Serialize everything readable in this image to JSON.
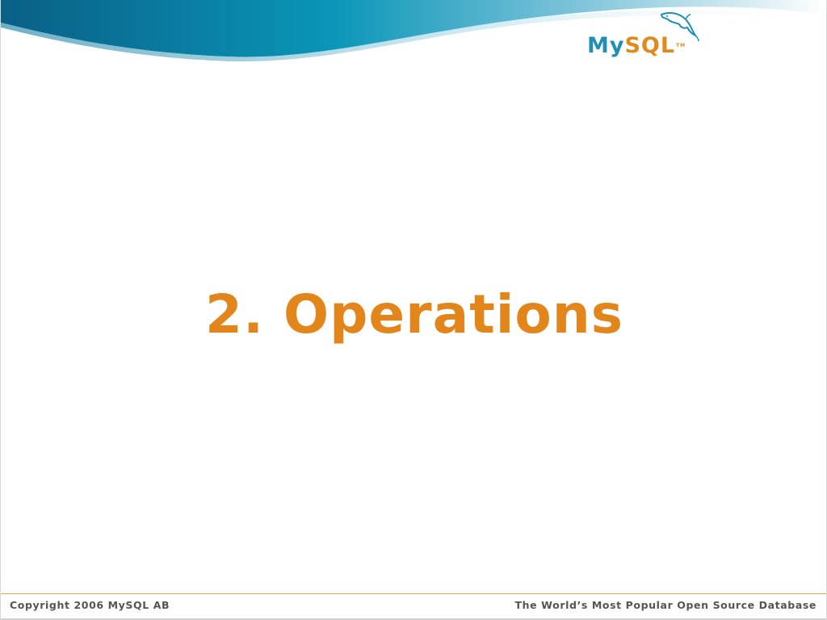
{
  "slide": {
    "title": "2. Operations"
  },
  "logo": {
    "my": "My",
    "sql": "SQL",
    "tm": "TM",
    "icon": "dolphin-icon"
  },
  "footer": {
    "copyright": "Copyright 2006 MySQL AB",
    "tagline": "The World’s Most Popular Open Source Database"
  },
  "colors": {
    "title": "#e2861c",
    "wave_dark": "#0b6f93",
    "wave_light": "#9fd3e3",
    "logo_blue": "#1f8fb5",
    "logo_orange": "#e08a1e",
    "footer_text": "#555555",
    "footer_rule": "#d9a44a"
  }
}
